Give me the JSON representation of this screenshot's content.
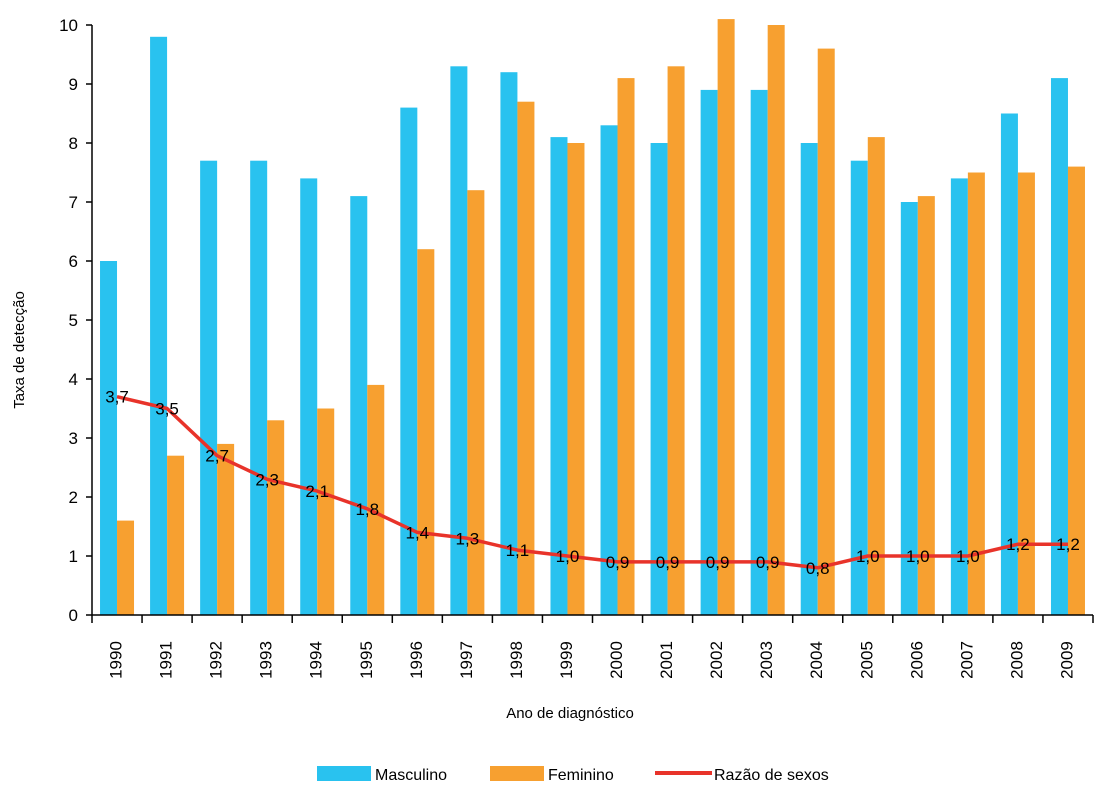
{
  "chart_data": {
    "type": "bar",
    "categories": [
      "1990",
      "1991",
      "1992",
      "1993",
      "1994",
      "1995",
      "1996",
      "1997",
      "1998",
      "1999",
      "2000",
      "2001",
      "2002",
      "2003",
      "2004",
      "2005",
      "2006",
      "2007",
      "2008",
      "2009"
    ],
    "series": [
      {
        "name": "Masculino",
        "type": "bar",
        "color": "#29c2ef",
        "values": [
          6.0,
          9.8,
          7.7,
          7.7,
          7.4,
          7.1,
          8.6,
          9.3,
          9.2,
          8.1,
          8.3,
          8.0,
          8.9,
          8.9,
          8.0,
          7.7,
          7.0,
          7.4,
          8.5,
          9.1
        ]
      },
      {
        "name": "Feminino",
        "type": "bar",
        "color": "#f7a030",
        "values": [
          1.6,
          2.7,
          2.9,
          3.3,
          3.5,
          3.9,
          6.2,
          7.2,
          8.7,
          8.0,
          9.1,
          9.3,
          10.1,
          10.0,
          9.6,
          8.1,
          7.1,
          7.5,
          7.5,
          7.6
        ]
      },
      {
        "name": "Razão de sexos",
        "type": "line",
        "color": "#e8332a",
        "values": [
          3.7,
          3.5,
          2.7,
          2.3,
          2.1,
          1.8,
          1.4,
          1.3,
          1.1,
          1.0,
          0.9,
          0.9,
          0.9,
          0.9,
          0.8,
          1.0,
          1.0,
          1.0,
          1.2,
          1.2
        ],
        "labels": [
          "3,7",
          "3,5",
          "2,7",
          "2,3",
          "2,1",
          "1,8",
          "1,4",
          "1,3",
          "1,1",
          "1,0",
          "0,9",
          "0,9",
          "0,9",
          "0,9",
          "0,8",
          "1,0",
          "1,0",
          "1,0",
          "1,2",
          "1,2"
        ]
      }
    ],
    "title": "",
    "xlabel": "Ano de diagnóstico",
    "ylabel": "Taxa de detecção",
    "ylim": [
      0,
      10
    ],
    "yticks": [
      "0",
      "1",
      "2",
      "3",
      "4",
      "5",
      "6",
      "7",
      "8",
      "9",
      "10"
    ],
    "grid": false,
    "legend_position": "bottom"
  }
}
